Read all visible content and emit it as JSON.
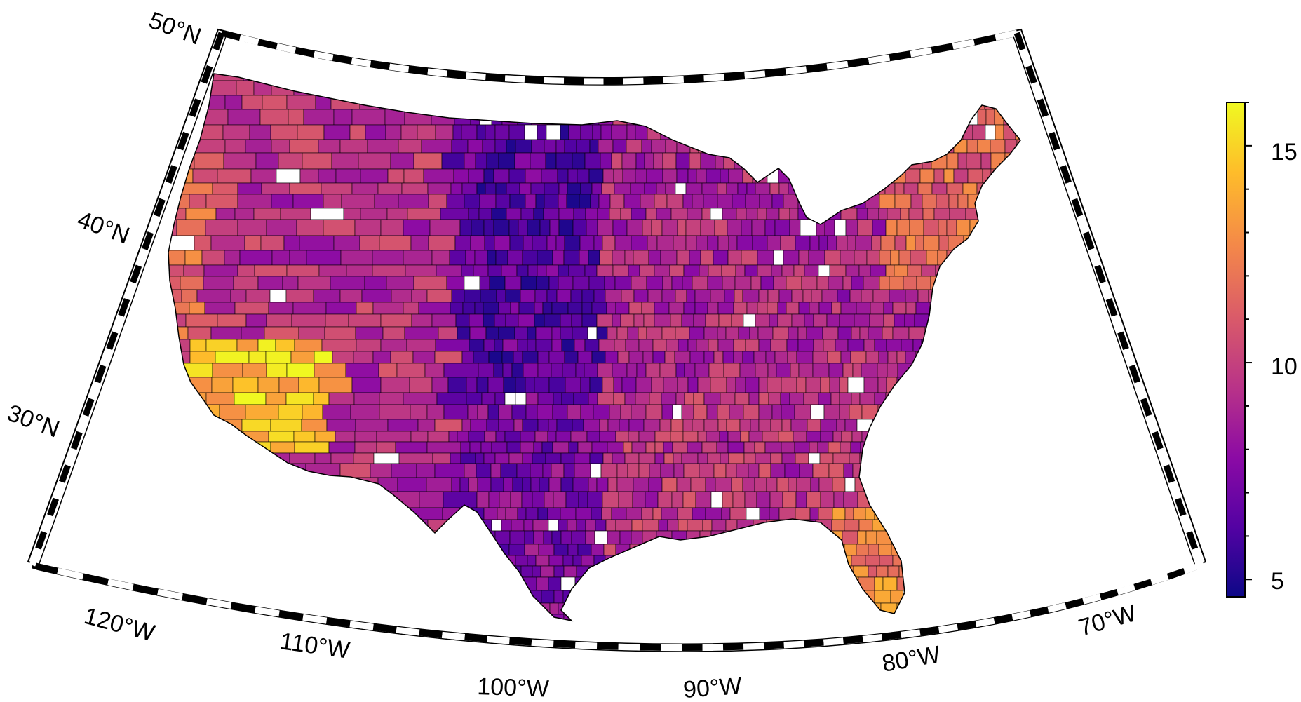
{
  "map": {
    "projection": "albers-conic",
    "region": "contiguous-united-states",
    "unit_type": "county",
    "frame_style": "checkered-border",
    "missing_data_color": "#ffffff",
    "county_edge_color": "#000000"
  },
  "lat_labels": [
    "50°N",
    "40°N",
    "30°N"
  ],
  "lon_labels": [
    "120°W",
    "110°W",
    "100°W",
    "90°W",
    "80°W",
    "70°W"
  ],
  "colorbar": {
    "colormap": "plasma",
    "min": 4.6,
    "max": 16.0,
    "tick_labels": [
      "5",
      "10",
      "15"
    ],
    "stops": [
      "#0d0887",
      "#5302a3",
      "#8b0aa5",
      "#b83289",
      "#db5c68",
      "#f48849",
      "#febd2a",
      "#f0f921"
    ]
  },
  "regional_values": {
    "northern_plains": 6.5,
    "southern_plains_texas": 7.5,
    "midwest": 9.0,
    "southeast": 9.5,
    "northeast": 11.5,
    "mountain_west": 9.5,
    "pacific_coast": 11.5,
    "southern_california_arizona": 14.5,
    "florida": 12.5
  }
}
